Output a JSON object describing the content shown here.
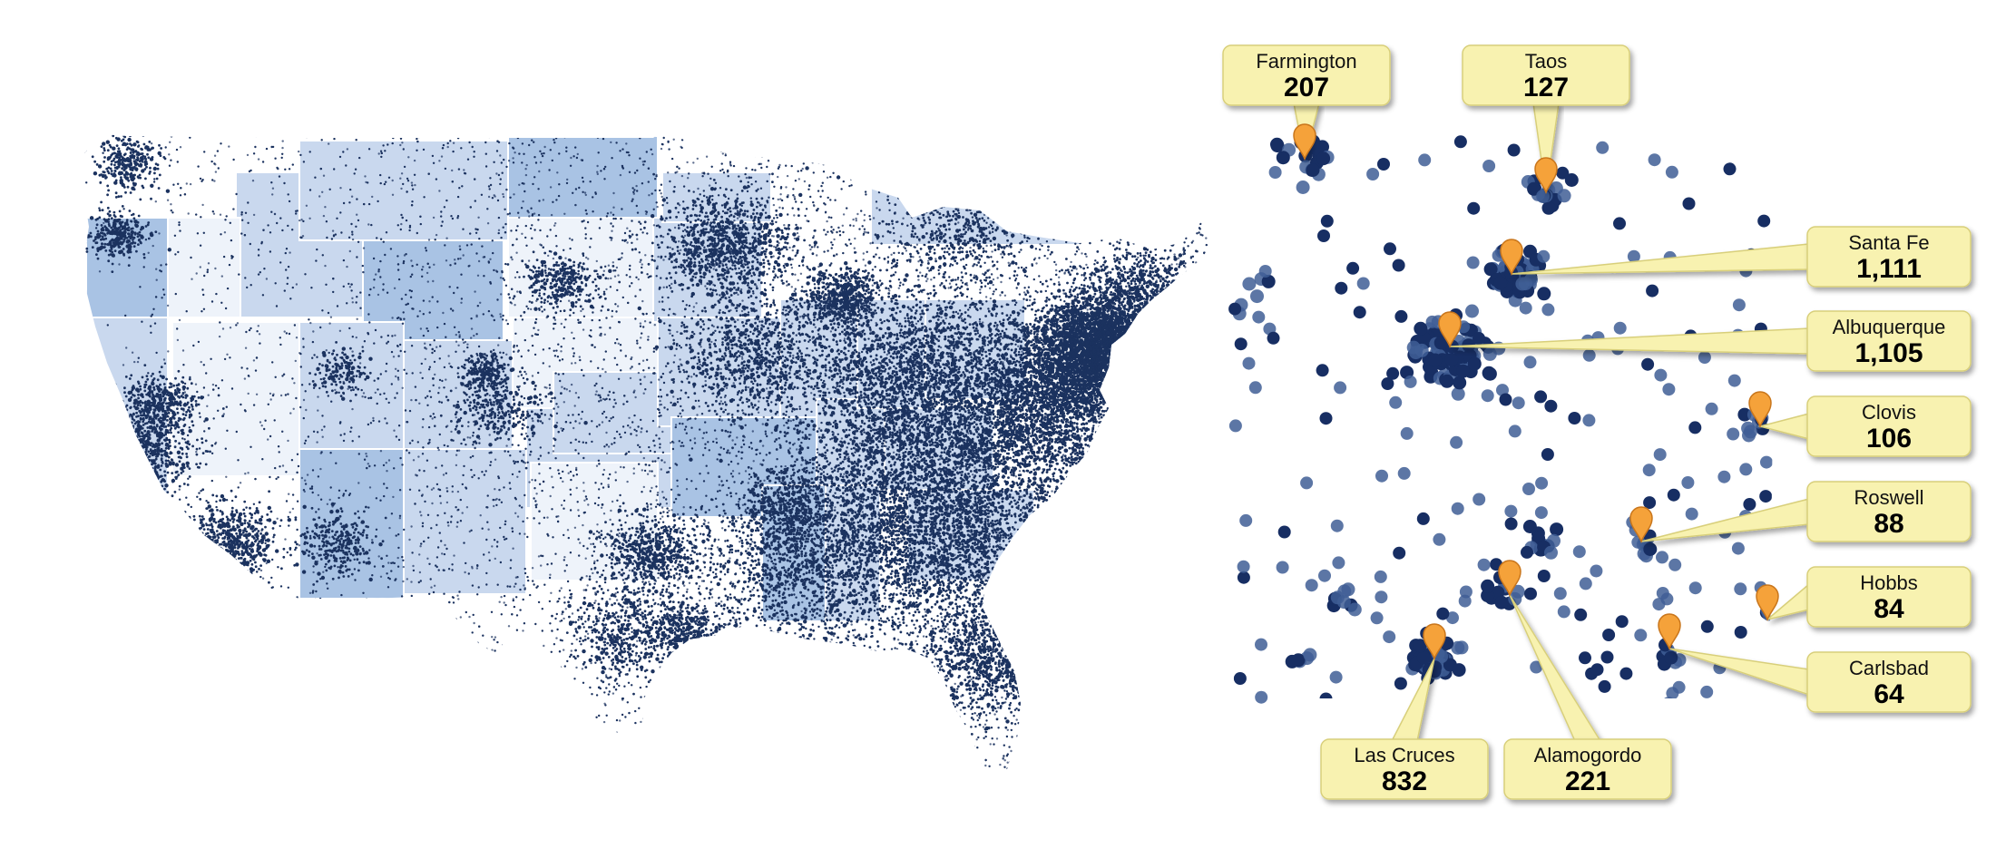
{
  "map": {
    "colors": {
      "background": "#ffffff",
      "state_fill_light": "#eef3fa",
      "state_fill_mid": "#c9d8ee",
      "state_fill_dark": "#a9c3e4",
      "state_border": "#ffffff",
      "dot": "#1b325f",
      "inset_fill": "#c7d7ef",
      "inset_dot": "#172e63",
      "inset_dot_faded": "#3f5e95",
      "label_fill": "#f8f2b0",
      "label_stroke": "#d8cf7a",
      "pin": "#f5a23a",
      "pin_stroke": "#c9761c"
    }
  },
  "callouts": [
    {
      "city": "Farmington",
      "value": "207"
    },
    {
      "city": "Taos",
      "value": "127"
    },
    {
      "city": "Santa Fe",
      "value": "1,111"
    },
    {
      "city": "Albuquerque",
      "value": "1,105"
    },
    {
      "city": "Clovis",
      "value": "106"
    },
    {
      "city": "Roswell",
      "value": "88"
    },
    {
      "city": "Hobbs",
      "value": "84"
    },
    {
      "city": "Carlsbad",
      "value": "64"
    },
    {
      "city": "Las Cruces",
      "value": "832"
    },
    {
      "city": "Alamogordo",
      "value": "221"
    }
  ]
}
